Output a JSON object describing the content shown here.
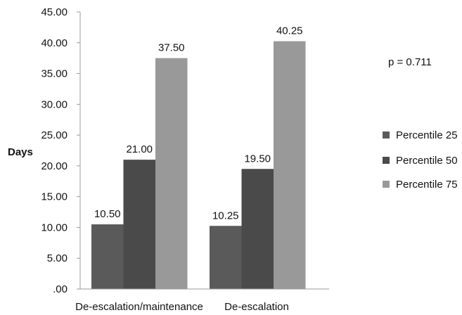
{
  "chart_data": {
    "type": "bar",
    "categories": [
      "De-escalation/maintenance",
      "De-escalation"
    ],
    "series": [
      {
        "name": "Percentile 25",
        "values": [
          10.5,
          10.25
        ],
        "color": "#5a5a5a"
      },
      {
        "name": "Percentile 50",
        "values": [
          21.0,
          19.5
        ],
        "color": "#4a4a4a"
      },
      {
        "name": "Percentile 75",
        "values": [
          37.5,
          40.25
        ],
        "color": "#999999"
      }
    ],
    "ylabel": "Days",
    "ylim": [
      0,
      45
    ],
    "yticks": [
      0,
      5,
      10,
      15,
      20,
      25,
      30,
      35,
      40,
      45
    ],
    "ytick_labels": [
      ".00",
      "5.00",
      "10.00",
      "15.00",
      "20.00",
      "25.00",
      "30.00",
      "35.00",
      "40.00",
      "45.00"
    ],
    "data_labels": [
      [
        "10.50",
        "10.25"
      ],
      [
        "21.00",
        "19.50"
      ],
      [
        "37.50",
        "40.25"
      ]
    ],
    "annotation": "p = 0.711",
    "legend_position": "right",
    "grid": false
  }
}
